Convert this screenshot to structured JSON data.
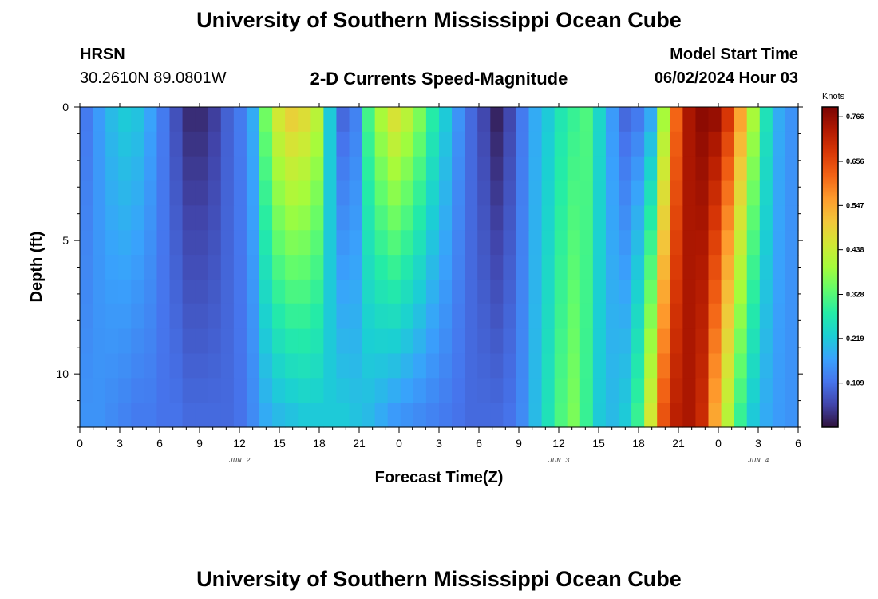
{
  "header": {
    "title": "University of Southern Mississippi Ocean Cube",
    "station": "HRSN",
    "coords": "30.2610N  89.0801W",
    "subtitle": "2-D Currents Speed-Magnitude",
    "model_start_label": "Model Start Time",
    "model_start_value": "06/02/2024 Hour 03"
  },
  "footer": {
    "title": "University of Southern Mississippi Ocean Cube"
  },
  "chart_data": {
    "type": "heatmap",
    "xlabel": "Forecast Time(Z)",
    "ylabel": "Depth (ft)",
    "xlim": [
      0,
      54
    ],
    "ylim": [
      0,
      12
    ],
    "y_inverted": true,
    "x_ticks": [
      0,
      3,
      6,
      9,
      12,
      15,
      18,
      21,
      24,
      27,
      30,
      33,
      36,
      39,
      42,
      45,
      48,
      51,
      54
    ],
    "x_tick_labels": [
      "0",
      "3",
      "6",
      "9",
      "12",
      "15",
      "18",
      "21",
      "0",
      "3",
      "6",
      "9",
      "12",
      "15",
      "18",
      "21",
      "0",
      "3",
      "6"
    ],
    "y_ticks": [
      0,
      5,
      10
    ],
    "y_tick_labels": [
      "0",
      "5",
      "10"
    ],
    "date_labels": [
      {
        "x": 12,
        "text": "JUN 2"
      },
      {
        "x": 36,
        "text": "JUN 3"
      },
      {
        "x": 51,
        "text": "JUN 4"
      }
    ],
    "colorbar": {
      "unit": "Knots",
      "min": 0.0,
      "max": 0.79,
      "ticks": [
        0.109,
        0.219,
        0.328,
        0.438,
        0.547,
        0.656,
        0.766
      ],
      "tick_labels": [
        "0.109",
        "0.219",
        "0.328",
        "0.438",
        "0.547",
        "0.656",
        "0.766"
      ],
      "colors": [
        "#30123b",
        "#4145ab",
        "#4675ed",
        "#39a2fc",
        "#1bcfd4",
        "#24eca6",
        "#61fc6c",
        "#a4fc3b",
        "#d1e834",
        "#f3c63a",
        "#fe9b2d",
        "#f36315",
        "#d93806",
        "#b11901",
        "#7a0403"
      ]
    },
    "depth_rows_ft": [
      0,
      1,
      2,
      3,
      4,
      5,
      6,
      7,
      8,
      9,
      10,
      11,
      12
    ],
    "surface_speed_knots": [
      0.12,
      0.16,
      0.2,
      0.22,
      0.21,
      0.17,
      0.12,
      0.07,
      0.03,
      0.03,
      0.05,
      0.09,
      0.12,
      0.18,
      0.35,
      0.45,
      0.49,
      0.47,
      0.42,
      0.22,
      0.1,
      0.13,
      0.31,
      0.4,
      0.46,
      0.42,
      0.36,
      0.28,
      0.22,
      0.15,
      0.1,
      0.06,
      0.02,
      0.06,
      0.12,
      0.18,
      0.22,
      0.27,
      0.3,
      0.32,
      0.24,
      0.16,
      0.1,
      0.12,
      0.18,
      0.4,
      0.62,
      0.74,
      0.77,
      0.76,
      0.68,
      0.55,
      0.4,
      0.26,
      0.18,
      0.15
    ],
    "bottom_speed_knots": [
      0.15,
      0.15,
      0.14,
      0.13,
      0.12,
      0.12,
      0.11,
      0.11,
      0.1,
      0.1,
      0.1,
      0.1,
      0.11,
      0.14,
      0.18,
      0.2,
      0.21,
      0.22,
      0.22,
      0.22,
      0.22,
      0.21,
      0.2,
      0.18,
      0.16,
      0.15,
      0.14,
      0.13,
      0.12,
      0.11,
      0.1,
      0.1,
      0.1,
      0.11,
      0.14,
      0.2,
      0.26,
      0.32,
      0.36,
      0.3,
      0.22,
      0.2,
      0.22,
      0.3,
      0.45,
      0.64,
      0.72,
      0.74,
      0.7,
      0.55,
      0.42,
      0.3,
      0.22,
      0.18,
      0.16,
      0.15
    ]
  }
}
